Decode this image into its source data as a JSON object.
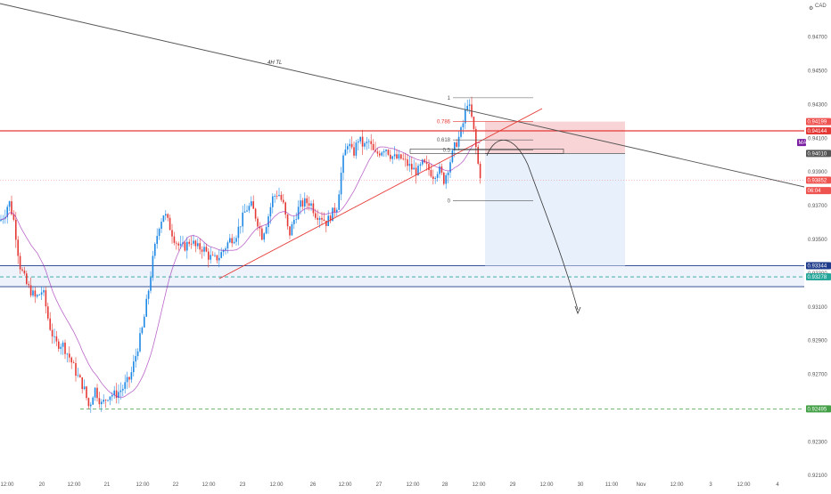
{
  "currency": "CAD",
  "top_glyph": "⚙",
  "chart_data": {
    "type": "candlestick",
    "ylim": [
      0.9208,
      0.9492
    ],
    "y_ticks": [
      0.947,
      0.945,
      0.943,
      0.941,
      0.939,
      0.937,
      0.935,
      0.933,
      0.931,
      0.929,
      0.927,
      0.925,
      0.923,
      0.921
    ],
    "x_ticks": [
      "12:00",
      "20",
      "12:00",
      "21",
      "12:00",
      "22",
      "12:00",
      "23",
      "12:00",
      "26",
      "12:00",
      "27",
      "12:00",
      "28",
      "12:00",
      "29",
      "12:00",
      "30",
      "11:00",
      "Nov",
      "12:00",
      "3",
      "12:00",
      "4"
    ],
    "annotations": {
      "trendline_label": "4H TL",
      "fib_levels": [
        {
          "label": "1",
          "value": 0.9434
        },
        {
          "label": "0.786",
          "value": 0.942
        },
        {
          "label": "0.618",
          "value": 0.9409
        },
        {
          "label": "0.5",
          "value": 0.9403
        },
        {
          "label": "0",
          "value": 0.9373
        }
      ]
    },
    "price_tags": [
      {
        "label": "0.94199",
        "value": 0.94199,
        "color": "#ef5350"
      },
      {
        "label": "0.94144",
        "value": 0.94144,
        "color": "#e53935"
      },
      {
        "label": "MA",
        "value": 0.94075,
        "color": "#7b1fa2"
      },
      {
        "label": "0.94010",
        "value": 0.9401,
        "color": "#555555"
      },
      {
        "label": "0.93852",
        "value": 0.93852,
        "color": "#ef5350"
      },
      {
        "label": "06:04",
        "value": 0.9379,
        "color": "#ef5350"
      },
      {
        "label": "0.93344",
        "value": 0.93344,
        "color": "#1e3a8a"
      },
      {
        "label": "0.93278",
        "value": 0.93278,
        "color": "#26a69a"
      },
      {
        "label": "0.92495",
        "value": 0.92495,
        "color": "#43a047"
      }
    ],
    "levels": {
      "resistance": 0.94144,
      "box_top": 0.93344,
      "box_bottom": 0.9322,
      "box_dashed": 0.93278,
      "support_green": 0.92495,
      "current": 0.93852,
      "short_entry": 0.9401,
      "short_stop": 0.94199,
      "short_target": 0.93344
    }
  }
}
